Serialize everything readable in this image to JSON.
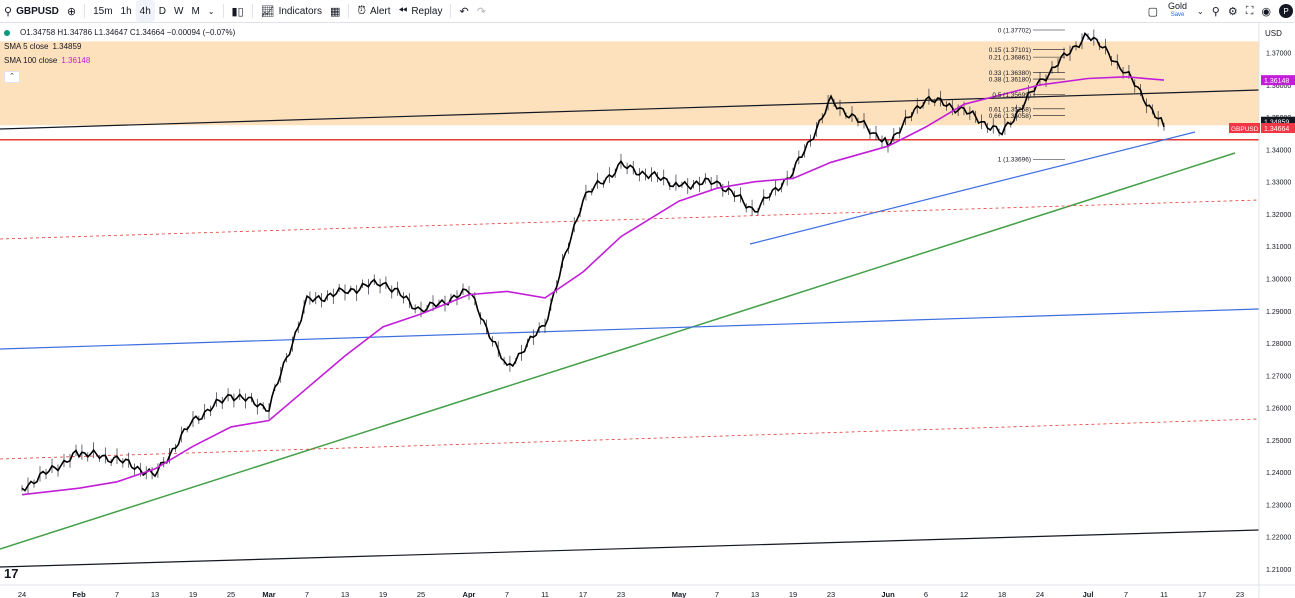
{
  "toolbar": {
    "symbol": "GBPUSD",
    "timeframes": [
      "15m",
      "1h",
      "4h",
      "D",
      "W",
      "M"
    ],
    "active_timeframe": "4h",
    "indicators_label": "Indicators",
    "alert_label": "Alert",
    "replay_label": "Replay",
    "gold_label": "Gold",
    "save_label": "Save",
    "avatar_letter": "P"
  },
  "legend": {
    "ohlc": "O1.34758 H1.34786 L1.34647 C1.34664 −0.00094 (−0.07%)",
    "sma5_label": "SMA 5 close",
    "sma5_value": "1.34859",
    "sma100_label": "SMA 100 close",
    "sma100_value": "1.36148"
  },
  "colors": {
    "sma5": "#000000",
    "sma100": "#c21ed9",
    "zone": "#fde1bd",
    "red_line": "#e53935",
    "green_trend": "#43a047",
    "blue_trend": "#3d6fe0",
    "last_price_bg": "#f23645"
  },
  "chart_data": {
    "type": "line",
    "symbol": "GBPUSD",
    "currency": "USD",
    "ylim": [
      1.205,
      1.3795
    ],
    "y_ticks": [
      "1.37000",
      "1.36000",
      "1.35000",
      "1.34000",
      "1.33000",
      "1.32000",
      "1.31000",
      "1.30000",
      "1.29000",
      "1.28000",
      "1.27000",
      "1.26000",
      "1.25000",
      "1.24000",
      "1.23000",
      "1.22000",
      "1.21000"
    ],
    "x_ticks": [
      "24",
      "Feb",
      "7",
      "13",
      "19",
      "25",
      "Mar",
      "7",
      "13",
      "19",
      "25",
      "Apr",
      "7",
      "11",
      "17",
      "23",
      "May",
      "7",
      "13",
      "19",
      "23",
      "Jun",
      "6",
      "12",
      "18",
      "24",
      "Jul",
      "7",
      "11",
      "17",
      "23"
    ],
    "price_series": [
      [
        "24",
        1.235
      ],
      [
        "Feb",
        1.246
      ],
      [
        "7",
        1.244
      ],
      [
        "13",
        1.239
      ],
      [
        "19",
        1.256
      ],
      [
        "25",
        1.264
      ],
      [
        "Mar",
        1.26
      ],
      [
        "7",
        1.293
      ],
      [
        "13",
        1.296
      ],
      [
        "19",
        1.299
      ],
      [
        "25",
        1.29
      ],
      [
        "Apr",
        1.296
      ],
      [
        "7",
        1.272
      ],
      [
        "11",
        1.286
      ],
      [
        "17",
        1.325
      ],
      [
        "23",
        1.335
      ],
      [
        "May",
        1.329
      ],
      [
        "7",
        1.33
      ],
      [
        "13",
        1.321
      ],
      [
        "19",
        1.333
      ],
      [
        "23",
        1.355
      ],
      [
        "Jun",
        1.342
      ],
      [
        "6",
        1.356
      ],
      [
        "12",
        1.352
      ],
      [
        "18",
        1.345
      ],
      [
        "24",
        1.361
      ],
      [
        "Jul",
        1.376
      ],
      [
        "7",
        1.364
      ],
      [
        "11",
        1.347
      ]
    ],
    "sma100_series": [
      [
        "24",
        1.233
      ],
      [
        "Feb",
        1.235
      ],
      [
        "7",
        1.237
      ],
      [
        "13",
        1.241
      ],
      [
        "19",
        1.248
      ],
      [
        "25",
        1.254
      ],
      [
        "Mar",
        1.256
      ],
      [
        "7",
        1.266
      ],
      [
        "13",
        1.276
      ],
      [
        "19",
        1.285
      ],
      [
        "25",
        1.289
      ],
      [
        "Apr",
        1.295
      ],
      [
        "7",
        1.296
      ],
      [
        "11",
        1.294
      ],
      [
        "17",
        1.302
      ],
      [
        "23",
        1.313
      ],
      [
        "May",
        1.324
      ],
      [
        "7",
        1.328
      ],
      [
        "13",
        1.33
      ],
      [
        "19",
        1.331
      ],
      [
        "23",
        1.336
      ],
      [
        "Jun",
        1.341
      ],
      [
        "6",
        1.347
      ],
      [
        "12",
        1.354
      ],
      [
        "18",
        1.357
      ],
      [
        "24",
        1.36
      ],
      [
        "Jul",
        1.362
      ],
      [
        "7",
        1.3625
      ],
      [
        "11",
        1.3615
      ]
    ],
    "price_labels": [
      {
        "text": "1.36148",
        "value": 1.36148,
        "kind": "sma100"
      },
      {
        "text": "1.34859",
        "value": 1.34859,
        "kind": "sma5"
      },
      {
        "text": "1.34664",
        "value": 1.34664,
        "kind": "last",
        "tag": "GBPUSD"
      }
    ],
    "fib_levels": [
      {
        "label": "0 (1.37702)",
        "value": 1.37702
      },
      {
        "label": "0.15 (1.37101)",
        "value": 1.37101
      },
      {
        "label": "0.21 (1.36861)",
        "value": 1.36861
      },
      {
        "label": "0.33 (1.36380)",
        "value": 1.3638
      },
      {
        "label": "0.38 (1.36180)",
        "value": 1.3618
      },
      {
        "label": "0.5 (1.35699)",
        "value": 1.35699
      },
      {
        "label": "0.61 (1.35258)",
        "value": 1.35258
      },
      {
        "label": "0.66 (1.35058)",
        "value": 1.35058
      },
      {
        "label": "1 (1.33696)",
        "value": 1.33696
      }
    ],
    "zone": {
      "from": 1.3475,
      "to": 1.3735
    },
    "horizontal_line": 1.343,
    "grid": false
  }
}
